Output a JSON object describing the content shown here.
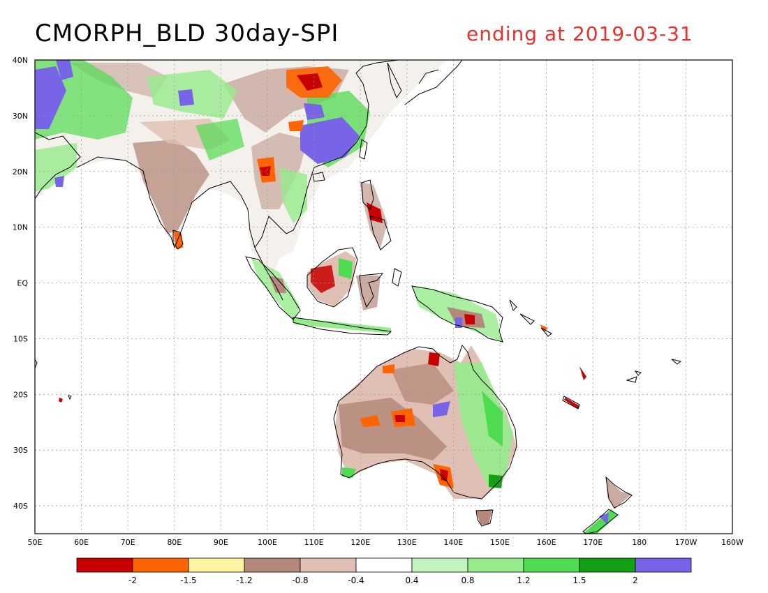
{
  "title": "CMORPH_BLD 30day-SPI",
  "subtitle": "ending at 2019-03-31",
  "map": {
    "lon_range": [
      50,
      200
    ],
    "lat_range": [
      -45,
      40
    ],
    "lon_labels": [
      "50E",
      "60E",
      "70E",
      "80E",
      "90E",
      "100E",
      "110E",
      "120E",
      "130E",
      "140E",
      "150E",
      "160E",
      "170E",
      "180",
      "170W",
      "160W"
    ],
    "lat_labels": [
      "40N",
      "30N",
      "20N",
      "10N",
      "EQ",
      "10S",
      "20S",
      "30S",
      "40S"
    ]
  },
  "colorbar": {
    "colors": [
      "#c80000",
      "#ff6400",
      "#fff5a0",
      "#b4887a",
      "#e0bfb4",
      "#ffffff",
      "#c4f5c0",
      "#96eb8c",
      "#50dc50",
      "#14a014",
      "#7864e6"
    ],
    "labels": [
      "-2",
      "-1.5",
      "-1.2",
      "-0.8",
      "-0.4",
      "0.4",
      "0.8",
      "1.2",
      "1.5",
      "2"
    ]
  },
  "colors": {
    "title": "#000000",
    "subtitle": "#e8302a",
    "coast": "#000000",
    "grid": "#999999"
  }
}
